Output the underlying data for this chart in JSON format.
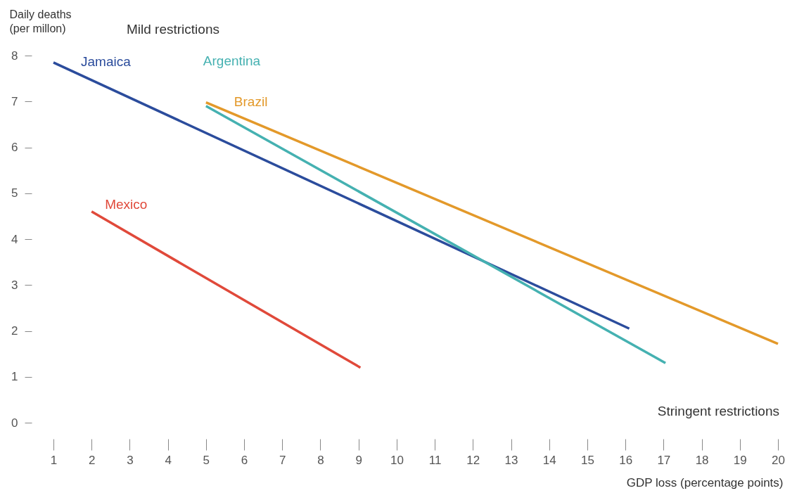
{
  "chart_data": {
    "type": "line",
    "ylabel": "Daily deaths (per millon)",
    "xlabel": "GDP loss (percentage points)",
    "annotations": [
      "Mild restrictions",
      "Stringent restrictions"
    ],
    "xlim": [
      1,
      20
    ],
    "xticks": [
      1,
      2,
      3,
      4,
      5,
      6,
      7,
      8,
      9,
      10,
      11,
      12,
      13,
      14,
      15,
      16,
      17,
      18,
      19,
      20
    ],
    "ylim": [
      0,
      8
    ],
    "yticks": [
      0,
      1,
      2,
      3,
      4,
      5,
      6,
      7,
      8
    ],
    "grid": false,
    "series": [
      {
        "name": "Jamaica",
        "color": "#2b4c9c",
        "x": [
          1,
          16.1
        ],
        "values": [
          7.85,
          2.05
        ]
      },
      {
        "name": "Argentina",
        "color": "#45b1b1",
        "x": [
          5,
          17.05
        ],
        "values": [
          6.9,
          1.3
        ]
      },
      {
        "name": "Brazil",
        "color": "#e3992a",
        "x": [
          5,
          20
        ],
        "values": [
          6.98,
          1.72
        ]
      },
      {
        "name": "Mexico",
        "color": "#e0493a",
        "x": [
          2,
          9.05
        ],
        "values": [
          4.6,
          1.2
        ]
      }
    ]
  }
}
